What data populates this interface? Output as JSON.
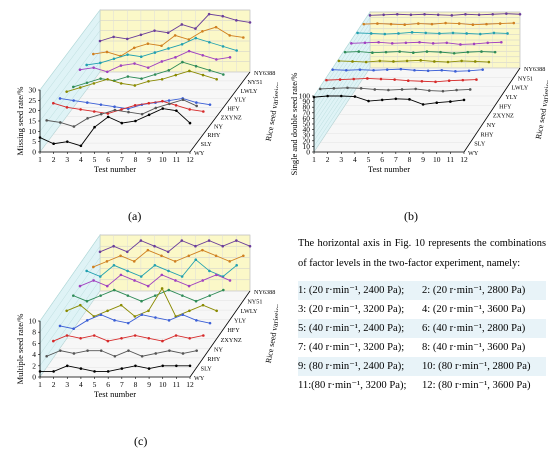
{
  "chart_data": [
    {
      "type": "line",
      "panel_label": "(a)",
      "xlabel": "Test number",
      "ylabel": "Missing seed rate/%",
      "zlabel": "Rice seed varieties",
      "x_ticks": [
        "1",
        "2",
        "3",
        "4",
        "5",
        "6",
        "7",
        "8",
        "9",
        "10",
        "11",
        "12"
      ],
      "y_ticks": [
        "0",
        "5",
        "10",
        "15",
        "20",
        "25",
        "30"
      ],
      "ylim": [
        0,
        30
      ],
      "series": [
        {
          "name": "WY",
          "values": [
            7,
            4,
            5,
            3,
            12,
            17,
            14,
            15,
            18,
            21,
            20,
            14
          ]
        },
        {
          "name": "SLY",
          "values": [
            11,
            10,
            8,
            12,
            14,
            16,
            15,
            14,
            17,
            19,
            21,
            18
          ]
        },
        {
          "name": "RHY",
          "values": [
            15,
            13,
            12,
            11,
            10,
            12,
            14,
            15,
            16,
            14,
            12,
            11
          ]
        },
        {
          "name": "NY",
          "values": [
            13,
            12,
            11,
            10,
            9,
            8,
            10,
            11,
            12,
            13,
            11,
            10
          ]
        },
        {
          "name": "ZXYNZ",
          "values": [
            12,
            14,
            16,
            18,
            16,
            15,
            17,
            18,
            20,
            22,
            20,
            18
          ]
        },
        {
          "name": "HFY",
          "values": [
            10,
            12,
            14,
            13,
            15,
            14,
            16,
            18,
            22,
            20,
            18,
            16
          ]
        },
        {
          "name": "YLY",
          "values": [
            14,
            15,
            13,
            16,
            17,
            15,
            18,
            20,
            23,
            21,
            19,
            20
          ]
        },
        {
          "name": "LWLY",
          "values": [
            12,
            13,
            15,
            17,
            16,
            18,
            20,
            22,
            25,
            23,
            21,
            19
          ]
        },
        {
          "name": "NY51",
          "values": [
            13,
            14,
            12,
            16,
            18,
            17,
            22,
            20,
            24,
            26,
            22,
            21
          ]
        },
        {
          "name": "NY6388",
          "values": [
            15,
            17,
            16,
            18,
            20,
            19,
            23,
            21,
            28,
            27,
            25,
            24
          ]
        }
      ]
    },
    {
      "type": "line",
      "panel_label": "(b)",
      "xlabel": "Test number",
      "ylabel": "Single and double seed rate/%",
      "zlabel": "Rice seed varieties",
      "x_ticks": [
        "1",
        "2",
        "3",
        "4",
        "5",
        "6",
        "7",
        "8",
        "9",
        "10",
        "11",
        "12"
      ],
      "y_ticks": [
        "0",
        "10",
        "20",
        "30",
        "40",
        "50",
        "60",
        "70",
        "80",
        "90",
        "100"
      ],
      "ylim": [
        0,
        100
      ],
      "series": [
        {
          "name": "WY",
          "values": [
            98,
            100,
            100,
            99,
            91,
            93,
            95,
            94,
            85,
            88,
            90,
            93
          ]
        },
        {
          "name": "SLY",
          "values": [
            96,
            97,
            98,
            97,
            95,
            94,
            95,
            96,
            93,
            92,
            94,
            95
          ]
        },
        {
          "name": "RHY",
          "values": [
            95,
            96,
            97,
            98,
            97,
            96,
            94,
            93,
            92,
            94,
            95,
            96
          ]
        },
        {
          "name": "NY",
          "values": [
            97,
            96,
            97,
            96,
            97,
            98,
            96,
            95,
            96,
            94,
            95,
            97
          ]
        },
        {
          "name": "ZXYNZ",
          "values": [
            96,
            95,
            94,
            96,
            95,
            96,
            97,
            95,
            94,
            96,
            95,
            94
          ]
        },
        {
          "name": "HFY",
          "values": [
            95,
            96,
            94,
            95,
            96,
            94,
            96,
            95,
            93,
            95,
            96,
            95
          ]
        },
        {
          "name": "YLY",
          "values": [
            94,
            95,
            96,
            94,
            95,
            96,
            94,
            95,
            92,
            93,
            95,
            96
          ]
        },
        {
          "name": "LWLY",
          "values": [
            96,
            95,
            94,
            95,
            97,
            96,
            95,
            96,
            95,
            94,
            96,
            95
          ]
        },
        {
          "name": "NY51",
          "values": [
            95,
            96,
            95,
            94,
            96,
            95,
            97,
            96,
            94,
            95,
            96,
            97
          ]
        },
        {
          "name": "NY6388",
          "values": [
            94,
            95,
            96,
            95,
            96,
            95,
            94,
            96,
            95,
            96,
            97,
            96
          ]
        }
      ]
    },
    {
      "type": "line",
      "panel_label": "(c)",
      "xlabel": "Test number",
      "ylabel": "Multiple seed rate/%",
      "zlabel": "Rice seed varieties",
      "x_ticks": [
        "1",
        "2",
        "3",
        "4",
        "5",
        "6",
        "7",
        "8",
        "9",
        "10",
        "11",
        "12"
      ],
      "y_ticks": [
        "0",
        "2",
        "4",
        "6",
        "8",
        "10"
      ],
      "ylim": [
        0,
        10
      ],
      "series": [
        {
          "name": "WY",
          "values": [
            1,
            1,
            2,
            1.5,
            1,
            1,
            1.5,
            2,
            1.5,
            2,
            2,
            2
          ]
        },
        {
          "name": "SLY",
          "values": [
            2,
            3,
            2.5,
            3,
            3,
            2,
            3,
            2,
            2.5,
            3,
            2.5,
            3
          ]
        },
        {
          "name": "RHY",
          "values": [
            3,
            4,
            3.5,
            4,
            3,
            3.5,
            4,
            3.5,
            3,
            4,
            3.5,
            4
          ]
        },
        {
          "name": "NY",
          "values": [
            4,
            3.5,
            5,
            6,
            5,
            4.5,
            6,
            5.5,
            5,
            6,
            5,
            4.5
          ]
        },
        {
          "name": "ZXYNZ",
          "values": [
            5,
            6,
            4,
            5,
            6,
            4,
            5,
            9,
            4,
            5,
            6,
            5
          ]
        },
        {
          "name": "HFY",
          "values": [
            6,
            5,
            6,
            7,
            6,
            5,
            6,
            7,
            6,
            5,
            6,
            7
          ]
        },
        {
          "name": "YLY",
          "values": [
            6,
            7,
            6,
            8,
            7,
            6,
            8,
            7,
            6,
            7,
            8,
            7
          ]
        },
        {
          "name": "LWLY",
          "values": [
            7,
            6,
            8,
            7,
            6,
            8,
            7,
            6,
            9,
            7,
            6,
            8
          ]
        },
        {
          "name": "NY51",
          "values": [
            6,
            7,
            8,
            7,
            9,
            8,
            7,
            8,
            9,
            8,
            7,
            8
          ]
        },
        {
          "name": "NY6388",
          "values": [
            7,
            8,
            7,
            9,
            8,
            7,
            9,
            8,
            9,
            8,
            9,
            8
          ]
        }
      ]
    }
  ],
  "series_colors": [
    "#000000",
    "#555555",
    "#d62a2a",
    "#3b5fd6",
    "#8a8a00",
    "#2e8b57",
    "#a040c0",
    "#20a0b0",
    "#d08020",
    "#6a3d9a"
  ],
  "varieties": [
    "WY",
    "SLY",
    "RHY",
    "NY",
    "ZXYNZ",
    "HFY",
    "YLY",
    "LWLY",
    "NY51",
    "NY6388"
  ],
  "captions": {
    "a": "(a)",
    "b": "(b)",
    "c": "(c)"
  },
  "note": {
    "text": "The horizontal axis in Fig. 10 represents the combinations of factor levels in the two-factor experiment, namely:",
    "combos": [
      [
        "1: (20 r·min⁻¹, 2400 Pa);",
        "2: (20 r·min⁻¹, 2800 Pa)"
      ],
      [
        "3: (20 r·min⁻¹, 3200 Pa);",
        "4: (20 r·min⁻¹, 3600 Pa)"
      ],
      [
        "5: (40 r·min⁻¹, 2400 Pa);",
        "6: (40 r·min⁻¹, 2800 Pa)"
      ],
      [
        "7: (40 r·min⁻¹, 3200 Pa);",
        "8: (40 r·min⁻¹, 3600 Pa)"
      ],
      [
        "9: (80 r·min⁻¹, 2400 Pa);",
        "10: (80 r·min⁻¹, 2800 Pa)"
      ],
      [
        "11:(80 r·min⁻¹, 3200 Pa);",
        "12: (80 r·min⁻¹, 3600 Pa)"
      ]
    ]
  }
}
